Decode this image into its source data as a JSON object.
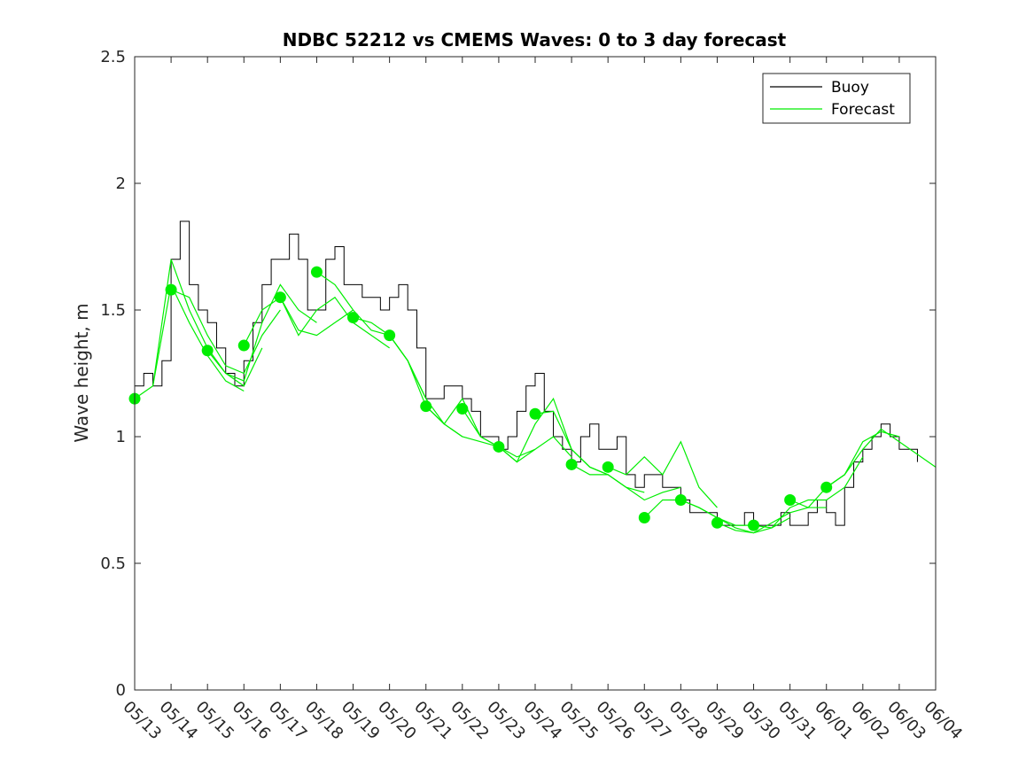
{
  "chart_data": {
    "type": "line",
    "title": "NDBC 52212 vs CMEMS Waves: 0 to 3 day forecast",
    "xlabel": "",
    "ylabel": "Wave height, m",
    "ylim": [
      0,
      2.5
    ],
    "yticks": [
      "0",
      "0.5",
      "1",
      "1.5",
      "2",
      "2.5"
    ],
    "x_start": "05/13",
    "x_end": "06/04",
    "xtick_labels": [
      "05/13",
      "05/14",
      "05/15",
      "05/16",
      "05/17",
      "05/18",
      "05/19",
      "05/20",
      "05/21",
      "05/22",
      "05/23",
      "05/24",
      "05/25",
      "05/26",
      "05/27",
      "05/28",
      "05/29",
      "05/30",
      "05/31",
      "06/01",
      "06/02",
      "06/03",
      "06/04"
    ],
    "grid": false,
    "legend": {
      "position": "top-right",
      "entries": [
        "Buoy",
        "Forecast"
      ]
    },
    "colors": {
      "buoy": "#000000",
      "forecast": "#00ee00"
    },
    "series": [
      {
        "name": "Buoy",
        "x": [
          "05/13 00:00",
          "05/13 06:00",
          "05/13 12:00",
          "05/13 18:00",
          "05/14 00:00",
          "05/14 06:00",
          "05/14 12:00",
          "05/14 18:00",
          "05/15 00:00",
          "05/15 06:00",
          "05/15 12:00",
          "05/15 18:00",
          "05/16 00:00",
          "05/16 06:00",
          "05/16 12:00",
          "05/16 18:00",
          "05/17 00:00",
          "05/17 06:00",
          "05/17 12:00",
          "05/17 18:00",
          "05/18 00:00",
          "05/18 06:00",
          "05/18 12:00",
          "05/18 18:00",
          "05/19 00:00",
          "05/19 06:00",
          "05/19 12:00",
          "05/19 18:00",
          "05/20 00:00",
          "05/20 06:00",
          "05/20 12:00",
          "05/20 18:00",
          "05/21 00:00",
          "05/21 06:00",
          "05/21 12:00",
          "05/21 18:00",
          "05/22 00:00",
          "05/22 06:00",
          "05/22 12:00",
          "05/22 18:00",
          "05/23 00:00",
          "05/23 06:00",
          "05/23 12:00",
          "05/23 18:00",
          "05/24 00:00",
          "05/24 06:00",
          "05/24 12:00",
          "05/24 18:00",
          "05/25 00:00",
          "05/25 06:00",
          "05/25 12:00",
          "05/25 18:00",
          "05/26 00:00",
          "05/26 06:00",
          "05/26 12:00",
          "05/26 18:00",
          "05/27 00:00",
          "05/27 06:00",
          "05/27 12:00",
          "05/27 18:00",
          "05/28 00:00",
          "05/28 06:00",
          "05/28 12:00",
          "05/28 18:00",
          "05/29 00:00",
          "05/29 06:00",
          "05/29 12:00",
          "05/29 18:00",
          "05/30 00:00",
          "05/30 06:00",
          "05/30 12:00",
          "05/30 18:00",
          "05/31 00:00",
          "05/31 06:00",
          "05/31 12:00",
          "05/31 18:00",
          "06/01 00:00",
          "06/01 06:00",
          "06/01 12:00",
          "06/01 18:00",
          "06/02 00:00",
          "06/02 06:00",
          "06/02 12:00",
          "06/02 18:00",
          "06/03 00:00",
          "06/03 06:00",
          "06/03 12:00"
        ],
        "values": [
          1.2,
          1.25,
          1.2,
          1.3,
          1.7,
          1.85,
          1.6,
          1.5,
          1.45,
          1.35,
          1.25,
          1.2,
          1.3,
          1.45,
          1.6,
          1.7,
          1.7,
          1.8,
          1.7,
          1.5,
          1.5,
          1.7,
          1.75,
          1.6,
          1.6,
          1.55,
          1.55,
          1.5,
          1.55,
          1.6,
          1.5,
          1.35,
          1.15,
          1.15,
          1.2,
          1.2,
          1.15,
          1.1,
          1.0,
          1.0,
          0.95,
          1.0,
          1.1,
          1.2,
          1.25,
          1.1,
          1.0,
          0.95,
          0.9,
          1.0,
          1.05,
          0.95,
          0.95,
          1.0,
          0.85,
          0.8,
          0.85,
          0.85,
          0.8,
          0.8,
          0.75,
          0.7,
          0.7,
          0.7,
          0.65,
          0.65,
          0.65,
          0.7,
          0.65,
          0.65,
          0.65,
          0.7,
          0.65,
          0.65,
          0.7,
          0.75,
          0.7,
          0.65,
          0.8,
          0.9,
          0.95,
          1.0,
          1.05,
          1.0,
          0.95,
          0.95,
          0.9
        ]
      },
      {
        "name": "Forecast",
        "runs": [
          {
            "x": [
              "05/13 00:00",
              "05/13 12:00",
              "05/14 00:00",
              "05/14 12:00",
              "05/15 00:00",
              "05/15 12:00",
              "05/16 00:00"
            ],
            "values": [
              1.15,
              1.2,
              1.6,
              1.45,
              1.32,
              1.22,
              1.18
            ]
          },
          {
            "x": [
              "05/13 12:00",
              "05/14 00:00",
              "05/14 12:00",
              "05/15 00:00",
              "05/15 12:00",
              "05/16 00:00",
              "05/16 12:00"
            ],
            "values": [
              1.2,
              1.7,
              1.5,
              1.35,
              1.25,
              1.2,
              1.35
            ]
          },
          {
            "x": [
              "05/14 00:00",
              "05/14 12:00",
              "05/15 00:00",
              "05/15 12:00",
              "05/16 00:00",
              "05/16 12:00",
              "05/17 00:00"
            ],
            "values": [
              1.58,
              1.55,
              1.4,
              1.28,
              1.25,
              1.4,
              1.5
            ]
          },
          {
            "x": [
              "05/15 00:00",
              "05/15 12:00",
              "05/16 00:00",
              "05/16 12:00",
              "05/17 00:00",
              "05/17 12:00",
              "05/18 00:00"
            ],
            "values": [
              1.34,
              1.25,
              1.22,
              1.45,
              1.6,
              1.5,
              1.45
            ]
          },
          {
            "x": [
              "05/16 00:00",
              "05/16 12:00",
              "05/17 00:00",
              "05/17 12:00",
              "05/18 00:00",
              "05/18 12:00",
              "05/19 00:00"
            ],
            "values": [
              1.36,
              1.5,
              1.55,
              1.42,
              1.4,
              1.45,
              1.5
            ]
          },
          {
            "x": [
              "05/17 00:00",
              "05/17 12:00",
              "05/18 00:00",
              "05/18 12:00",
              "05/19 00:00",
              "05/19 12:00",
              "05/20 00:00"
            ],
            "values": [
              1.55,
              1.4,
              1.5,
              1.55,
              1.45,
              1.4,
              1.35
            ]
          },
          {
            "x": [
              "05/18 00:00",
              "05/18 12:00",
              "05/19 00:00",
              "05/19 12:00",
              "05/20 00:00",
              "05/20 12:00",
              "05/21 00:00"
            ],
            "values": [
              1.65,
              1.6,
              1.5,
              1.42,
              1.4,
              1.3,
              1.15
            ]
          },
          {
            "x": [
              "05/19 00:00",
              "05/19 12:00",
              "05/20 00:00",
              "05/20 12:00",
              "05/21 00:00",
              "05/21 12:00",
              "05/22 00:00"
            ],
            "values": [
              1.47,
              1.45,
              1.4,
              1.3,
              1.15,
              1.05,
              1.0
            ]
          },
          {
            "x": [
              "05/20 00:00",
              "05/20 12:00",
              "05/21 00:00",
              "05/21 12:00",
              "05/22 00:00",
              "05/22 12:00",
              "05/23 00:00"
            ],
            "values": [
              1.4,
              1.3,
              1.12,
              1.05,
              1.0,
              0.98,
              0.96
            ]
          },
          {
            "x": [
              "05/21 00:00",
              "05/21 12:00",
              "05/22 00:00",
              "05/22 12:00",
              "05/23 00:00",
              "05/23 12:00",
              "05/24 00:00"
            ],
            "values": [
              1.12,
              1.05,
              1.15,
              1.0,
              0.96,
              0.92,
              0.95
            ]
          },
          {
            "x": [
              "05/22 00:00",
              "05/22 12:00",
              "05/23 00:00",
              "05/23 12:00",
              "05/24 00:00",
              "05/24 12:00",
              "05/25 00:00"
            ],
            "values": [
              1.11,
              1.0,
              0.96,
              0.9,
              0.95,
              1.0,
              0.92
            ]
          },
          {
            "x": [
              "05/23 00:00",
              "05/23 12:00",
              "05/24 00:00",
              "05/24 12:00",
              "05/25 00:00",
              "05/25 12:00",
              "05/26 00:00"
            ],
            "values": [
              0.96,
              0.9,
              1.05,
              1.15,
              0.95,
              0.88,
              0.85
            ]
          },
          {
            "x": [
              "05/24 00:00",
              "05/24 12:00",
              "05/25 00:00",
              "05/25 12:00",
              "05/26 00:00",
              "05/26 12:00",
              "05/27 00:00"
            ],
            "values": [
              1.09,
              1.1,
              0.95,
              0.88,
              0.85,
              0.8,
              0.78
            ]
          },
          {
            "x": [
              "05/25 00:00",
              "05/25 12:00",
              "05/26 00:00",
              "05/26 12:00",
              "05/27 00:00",
              "05/27 12:00",
              "05/28 00:00"
            ],
            "values": [
              0.89,
              0.85,
              0.85,
              0.8,
              0.75,
              0.78,
              0.8
            ]
          },
          {
            "x": [
              "05/26 00:00",
              "05/26 12:00",
              "05/27 00:00",
              "05/27 12:00",
              "05/28 00:00",
              "05/28 12:00",
              "05/29 00:00"
            ],
            "values": [
              0.88,
              0.85,
              0.92,
              0.85,
              0.98,
              0.8,
              0.72
            ]
          },
          {
            "x": [
              "05/27 00:00",
              "05/27 12:00",
              "05/28 00:00",
              "05/28 12:00",
              "05/29 00:00",
              "05/29 12:00",
              "05/30 00:00"
            ],
            "values": [
              0.68,
              0.75,
              0.75,
              0.72,
              0.68,
              0.65,
              0.65
            ]
          },
          {
            "x": [
              "05/28 00:00",
              "05/28 12:00",
              "05/29 00:00",
              "05/29 12:00",
              "05/30 00:00",
              "05/30 12:00",
              "05/31 00:00"
            ],
            "values": [
              0.75,
              0.72,
              0.68,
              0.64,
              0.62,
              0.64,
              0.68
            ]
          },
          {
            "x": [
              "05/29 00:00",
              "05/29 12:00",
              "05/30 00:00",
              "05/30 12:00",
              "05/31 00:00",
              "05/31 12:00",
              "06/01 00:00"
            ],
            "values": [
              0.66,
              0.63,
              0.62,
              0.66,
              0.7,
              0.72,
              0.72
            ]
          },
          {
            "x": [
              "05/30 00:00",
              "05/30 12:00",
              "05/31 00:00",
              "05/31 12:00",
              "06/01 00:00",
              "06/01 12:00",
              "06/02 00:00"
            ],
            "values": [
              0.65,
              0.64,
              0.72,
              0.75,
              0.75,
              0.8,
              0.92
            ]
          },
          {
            "x": [
              "05/31 00:00",
              "05/31 12:00",
              "06/01 00:00",
              "06/01 12:00",
              "06/02 00:00",
              "06/02 12:00",
              "06/03 00:00"
            ],
            "values": [
              0.75,
              0.72,
              0.8,
              0.85,
              0.98,
              1.02,
              1.0
            ]
          },
          {
            "x": [
              "06/01 00:00",
              "06/01 12:00",
              "06/02 00:00",
              "06/02 12:00",
              "06/03 00:00",
              "06/03 12:00",
              "06/04 00:00"
            ],
            "values": [
              0.8,
              0.85,
              0.95,
              1.03,
              0.98,
              0.93,
              0.88
            ]
          }
        ],
        "markers": {
          "x": [
            "05/13",
            "05/14",
            "05/15",
            "05/16",
            "05/17",
            "05/18",
            "05/19",
            "05/20",
            "05/21",
            "05/22",
            "05/23",
            "05/24",
            "05/25",
            "05/26",
            "05/27",
            "05/28",
            "05/29",
            "05/30",
            "05/31",
            "06/01"
          ],
          "values": [
            1.15,
            1.58,
            1.34,
            1.36,
            1.55,
            1.65,
            1.47,
            1.4,
            1.12,
            1.11,
            0.96,
            1.09,
            0.89,
            0.88,
            0.68,
            0.75,
            0.66,
            0.65,
            0.75,
            0.8
          ]
        }
      }
    ]
  }
}
